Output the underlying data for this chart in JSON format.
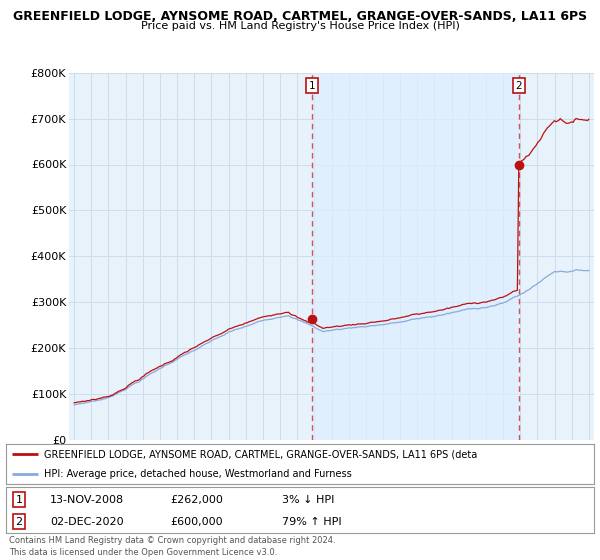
{
  "title": "GREENFIELD LODGE, AYNSOME ROAD, CARTMEL, GRANGE-OVER-SANDS, LA11 6PS",
  "subtitle": "Price paid vs. HM Land Registry's House Price Index (HPI)",
  "ylim": [
    0,
    800000
  ],
  "yticks": [
    0,
    100000,
    200000,
    300000,
    400000,
    500000,
    600000,
    700000,
    800000
  ],
  "ytick_labels": [
    "£0",
    "£100K",
    "£200K",
    "£300K",
    "£400K",
    "£500K",
    "£600K",
    "£700K",
    "£800K"
  ],
  "hpi_color": "#88aadd",
  "price_color": "#bb1111",
  "vline_color": "#cc4444",
  "shade_color": "#ddeeff",
  "bg_plot_color": "#e8f2fb",
  "legend_line1": "GREENFIELD LODGE, AYNSOME ROAD, CARTMEL, GRANGE-OVER-SANDS, LA11 6PS (deta",
  "legend_line2": "HPI: Average price, detached house, Westmorland and Furness",
  "table_row1": [
    "1",
    "13-NOV-2008",
    "£262,000",
    "3% ↓ HPI"
  ],
  "table_row2": [
    "2",
    "02-DEC-2020",
    "£600,000",
    "79% ↑ HPI"
  ],
  "footer": "Contains HM Land Registry data © Crown copyright and database right 2024.\nThis data is licensed under the Open Government Licence v3.0.",
  "bg_color": "#ffffff",
  "grid_color": "#ccddee",
  "xlim_start": 1994.7,
  "xlim_end": 2025.3,
  "sale1_x": 2008.87,
  "sale1_y": 262000,
  "sale2_x": 2020.92,
  "sale2_y": 600000
}
